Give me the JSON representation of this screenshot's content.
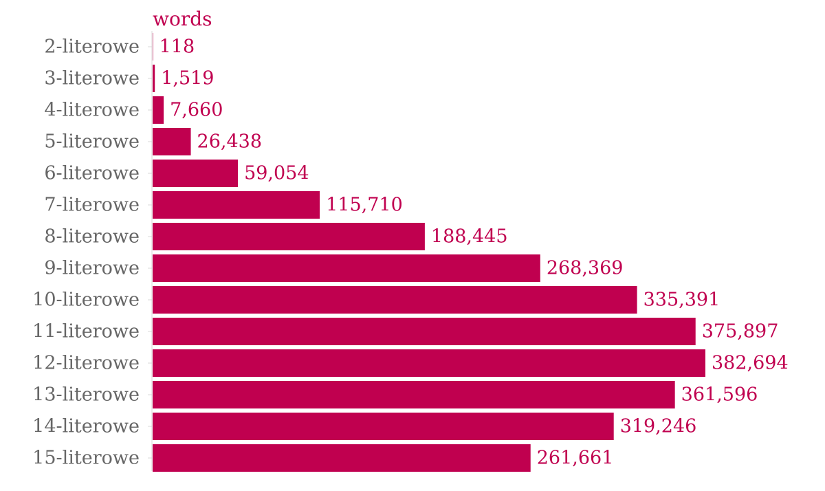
{
  "chart_data": {
    "type": "bar",
    "orientation": "horizontal",
    "title": "",
    "xlabel": "",
    "ylabel": "",
    "series": [
      {
        "name": "words",
        "color": "#c0004f",
        "values": [
          118,
          1519,
          7660,
          26438,
          59054,
          115710,
          188445,
          268369,
          335391,
          375897,
          382694,
          361596,
          319246,
          261661
        ]
      }
    ],
    "categories": [
      "2-literowe",
      "3-literowe",
      "4-literowe",
      "5-literowe",
      "6-literowe",
      "7-literowe",
      "8-literowe",
      "9-literowe",
      "10-literowe",
      "11-literowe",
      "12-literowe",
      "13-literowe",
      "14-literowe",
      "15-literowe"
    ],
    "value_labels": [
      "118",
      "1,519",
      "7,660",
      "26,438",
      "59,054",
      "115,710",
      "188,445",
      "268,369",
      "335,391",
      "375,897",
      "382,694",
      "361,596",
      "319,246",
      "261,661"
    ],
    "xlim": [
      0,
      382694
    ],
    "grid": false,
    "legend": "none",
    "label_color": "#666666",
    "accent_color": "#c0004f"
  }
}
